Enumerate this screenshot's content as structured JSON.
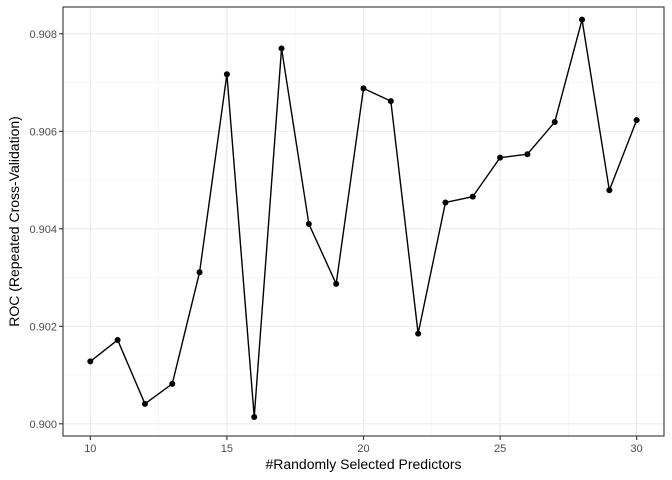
{
  "chart_data": {
    "type": "line",
    "title": "",
    "xlabel": "#Randomly Selected Predictors",
    "ylabel": "ROC (Repeated Cross-Validation)",
    "xlim": [
      9.0,
      31.0
    ],
    "ylim": [
      0.89975,
      0.90855
    ],
    "x_ticks": [
      10,
      15,
      20,
      25,
      30
    ],
    "y_ticks": [
      0.9,
      0.902,
      0.904,
      0.906,
      0.908
    ],
    "y_tick_labels": [
      "0.900",
      "0.902",
      "0.904",
      "0.906",
      "0.908"
    ],
    "grid": true,
    "legend": "none",
    "line_color": "#000000",
    "series": [
      {
        "x": [
          10,
          11,
          12,
          13,
          14,
          15,
          16,
          17,
          18,
          19,
          20,
          21,
          22,
          23,
          24,
          25,
          26,
          27,
          28,
          29,
          30
        ],
        "values": [
          0.90128,
          0.90172,
          0.90041,
          0.90082,
          0.90311,
          0.90717,
          0.90014,
          0.9077,
          0.9041,
          0.90287,
          0.90688,
          0.90662,
          0.90185,
          0.90454,
          0.90466,
          0.90546,
          0.90553,
          0.90619,
          0.90829,
          0.90479,
          0.90623
        ]
      }
    ]
  }
}
